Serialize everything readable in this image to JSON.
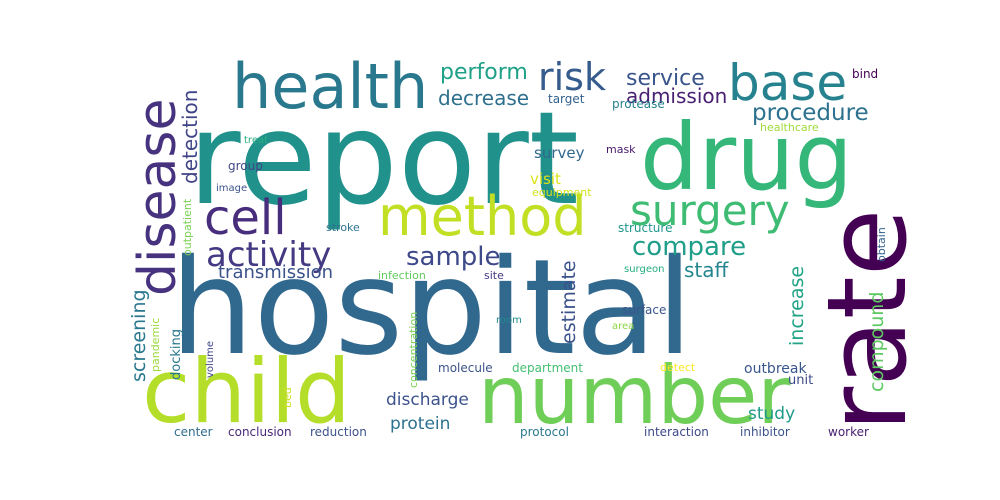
{
  "word_cloud": {
    "words": [
      {
        "text": "hospital",
        "color": "#31688e",
        "vertical": false
      },
      {
        "text": "report",
        "color": "#21918c",
        "vertical": false
      },
      {
        "text": "drug",
        "color": "#35b779",
        "vertical": false
      },
      {
        "text": "rate",
        "color": "#440154",
        "vertical": true
      },
      {
        "text": "number",
        "color": "#6ece58",
        "vertical": false
      },
      {
        "text": "child",
        "color": "#b5de2b",
        "vertical": false
      },
      {
        "text": "health",
        "color": "#2a788e",
        "vertical": false
      },
      {
        "text": "method",
        "color": "#c2df23",
        "vertical": false
      },
      {
        "text": "disease",
        "color": "#46327e",
        "vertical": true
      },
      {
        "text": "base",
        "color": "#26828e",
        "vertical": false
      },
      {
        "text": "cell",
        "color": "#472d7b",
        "vertical": false
      },
      {
        "text": "surgery",
        "color": "#3fbc73",
        "vertical": false
      },
      {
        "text": "risk",
        "color": "#365c8d",
        "vertical": false
      },
      {
        "text": "activity",
        "color": "#443a83",
        "vertical": false
      },
      {
        "text": "sample",
        "color": "#3e4989",
        "vertical": false
      },
      {
        "text": "compare",
        "color": "#1f9e89",
        "vertical": false
      },
      {
        "text": "procedure",
        "color": "#2c728e",
        "vertical": false
      },
      {
        "text": "perform",
        "color": "#1fa188",
        "vertical": false
      },
      {
        "text": "service",
        "color": "#39558c",
        "vertical": false
      },
      {
        "text": "decrease",
        "color": "#2d708e",
        "vertical": false
      },
      {
        "text": "admission",
        "color": "#482173",
        "vertical": false
      },
      {
        "text": "transmission",
        "color": "#3b528b",
        "vertical": false
      },
      {
        "text": "staff",
        "color": "#25858e",
        "vertical": false
      },
      {
        "text": "detection",
        "color": "#414487",
        "vertical": true
      },
      {
        "text": "screening",
        "color": "#2a788e",
        "vertical": true
      },
      {
        "text": "estimate",
        "color": "#3b528b",
        "vertical": true
      },
      {
        "text": "increase",
        "color": "#20a386",
        "vertical": true
      },
      {
        "text": "compound",
        "color": "#5ec962",
        "vertical": true
      },
      {
        "text": "survey",
        "color": "#31688e",
        "vertical": false
      },
      {
        "text": "visit",
        "color": "#dde318",
        "vertical": false
      },
      {
        "text": "equipment",
        "color": "#d2e21b",
        "vertical": false
      },
      {
        "text": "discharge",
        "color": "#3b528b",
        "vertical": false
      },
      {
        "text": "protein",
        "color": "#2c728e",
        "vertical": false
      },
      {
        "text": "study",
        "color": "#1f9a8a",
        "vertical": false
      },
      {
        "text": "outbreak",
        "color": "#39568c",
        "vertical": false
      },
      {
        "text": "unit",
        "color": "#3e4a89",
        "vertical": false
      },
      {
        "text": "target",
        "color": "#34618d",
        "vertical": false
      },
      {
        "text": "protease",
        "color": "#26828e",
        "vertical": false
      },
      {
        "text": "healthcare",
        "color": "#a0da39",
        "vertical": false
      },
      {
        "text": "treat",
        "color": "#29af7f",
        "vertical": false
      },
      {
        "text": "group",
        "color": "#404688",
        "vertical": false
      },
      {
        "text": "image",
        "color": "#3b528b",
        "vertical": false
      },
      {
        "text": "mask",
        "color": "#48186a",
        "vertical": false
      },
      {
        "text": "structure",
        "color": "#1f968b",
        "vertical": false
      },
      {
        "text": "stroke",
        "color": "#2d718e",
        "vertical": false
      },
      {
        "text": "infection",
        "color": "#63cb5f",
        "vertical": false
      },
      {
        "text": "site",
        "color": "#443983",
        "vertical": false
      },
      {
        "text": "surgeon",
        "color": "#26ad81",
        "vertical": false
      },
      {
        "text": "surface",
        "color": "#3a548c",
        "vertical": false
      },
      {
        "text": "area",
        "color": "#8ed645",
        "vertical": false
      },
      {
        "text": "room",
        "color": "#23898e",
        "vertical": false
      },
      {
        "text": "molecule",
        "color": "#3b528b",
        "vertical": false
      },
      {
        "text": "department",
        "color": "#42be71",
        "vertical": false
      },
      {
        "text": "detect",
        "color": "#fde725",
        "vertical": false
      },
      {
        "text": "concentration",
        "color": "#7ad151",
        "vertical": true
      },
      {
        "text": "volume",
        "color": "#3f4788",
        "vertical": true
      },
      {
        "text": "docking",
        "color": "#2a788e",
        "vertical": true
      },
      {
        "text": "pandemic",
        "color": "#9bd93c",
        "vertical": true
      },
      {
        "text": "outpatient",
        "color": "#7ad151",
        "vertical": true
      },
      {
        "text": "bed",
        "color": "#c8e020",
        "vertical": true
      },
      {
        "text": "obtain",
        "color": "#33638d",
        "vertical": true
      },
      {
        "text": "bind",
        "color": "#440154",
        "vertical": false
      },
      {
        "text": "center",
        "color": "#2f6b8e",
        "vertical": false
      },
      {
        "text": "conclusion",
        "color": "#482878",
        "vertical": false
      },
      {
        "text": "reduction",
        "color": "#3b528b",
        "vertical": false
      },
      {
        "text": "protocol",
        "color": "#2a788e",
        "vertical": false
      },
      {
        "text": "interaction",
        "color": "#3e4989",
        "vertical": false
      },
      {
        "text": "inhibitor",
        "color": "#3b528b",
        "vertical": false
      },
      {
        "text": "worker",
        "color": "#482173",
        "vertical": false
      }
    ]
  }
}
